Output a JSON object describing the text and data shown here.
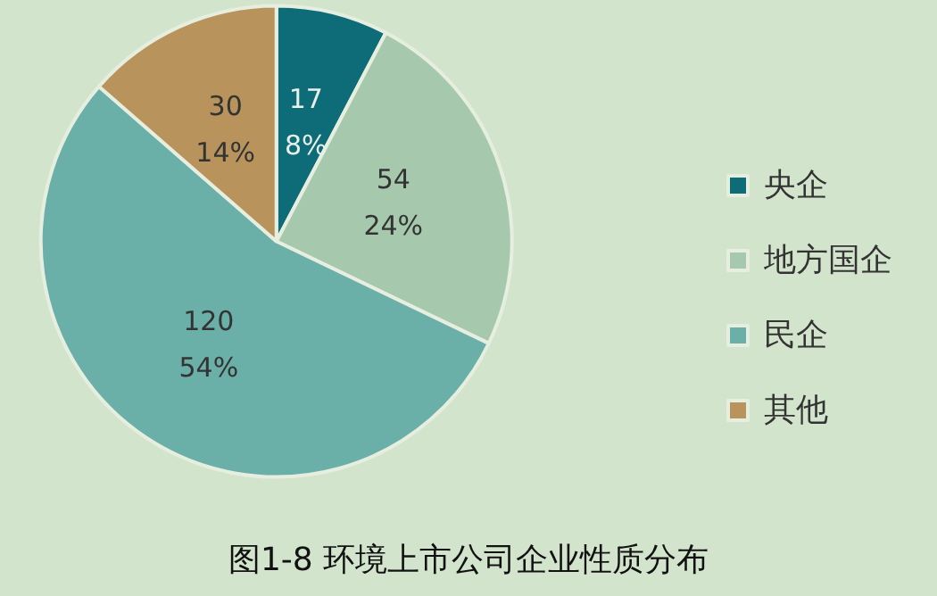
{
  "chart_data": {
    "type": "pie",
    "title": "图1-8 环境上市公司企业性质分布",
    "categories": [
      "央企",
      "地方国企",
      "民企",
      "其他"
    ],
    "values": [
      17,
      54,
      120,
      30
    ],
    "colors": [
      "#0e6b78",
      "#a6c9ae",
      "#6aafa8",
      "#b8935b"
    ],
    "value_labels": [
      "17\n8%",
      "54\n24%",
      "120\n54%",
      "30\n14%"
    ],
    "legend": "right"
  }
}
